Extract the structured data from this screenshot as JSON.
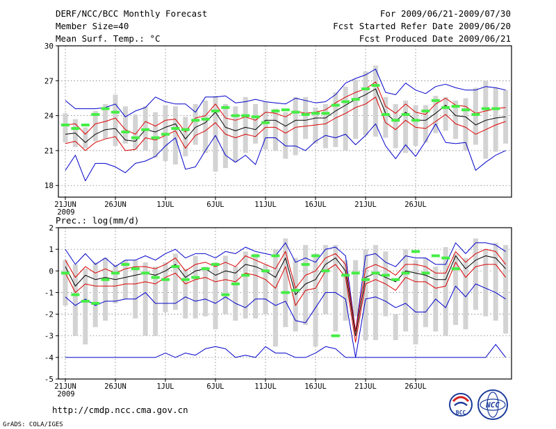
{
  "header": {
    "title": "DERF/NCC/BCC Monthly Forecast",
    "member": "Member Size=40",
    "variable": "Mean Surf. Temp.: °C",
    "range": "For 2009/06/21-2009/07/30",
    "started": "Fcst Started Refer Date 2009/06/20",
    "produced": "Fcst Produced Date 2009/06/21"
  },
  "footer": {
    "url": "http://cmdp.ncc.cma.gov.cn",
    "credit": "GrADS: COLA/IGES",
    "logo_bcc": "BCC",
    "logo_ncc": "NCC"
  },
  "colors": {
    "box": "#d3d3d3",
    "obs": "#44ee44",
    "mean": "#000000",
    "spread": "#dd0000",
    "extreme": "#0000cc",
    "grid": "#777777"
  },
  "chart_data": [
    {
      "type": "line",
      "title": "Mean Surf. Temp.: °C",
      "x_ticks": [
        "21JUN",
        "26JUN",
        "1JUL",
        "6JUL",
        "11JUL",
        "16JUL",
        "21JUL",
        "26JUL"
      ],
      "x_sublabel": "2009",
      "ylim": [
        17,
        30
      ],
      "y_ticks": [
        18,
        21,
        24,
        27,
        30
      ],
      "grid": true,
      "series": [
        {
          "name": "box_top",
          "values": [
            24.2,
            23.7,
            23.0,
            24.4,
            25.0,
            25.8,
            24.8,
            24.1,
            24.8,
            24.3,
            24.9,
            24.8,
            23.9,
            25.0,
            25.3,
            25.7,
            25.0,
            24.8,
            25.6,
            25.0,
            25.2,
            24.6,
            24.3,
            25.6,
            25.6,
            24.7,
            25.0,
            26.0,
            26.5,
            27.1,
            27.8,
            28.3,
            25.6,
            25.0,
            25.3,
            24.9,
            24.9,
            25.7,
            25.6,
            25.3,
            25.5,
            26.4,
            27.0,
            26.4,
            26.2
          ]
        },
        {
          "name": "box_bottom",
          "values": [
            21.7,
            21.3,
            21.2,
            21.8,
            22.0,
            21.4,
            21.6,
            21.1,
            21.0,
            20.4,
            20.1,
            19.8,
            20.5,
            21.5,
            20.8,
            19.2,
            19.5,
            20.0,
            20.8,
            21.6,
            21.1,
            21.0,
            20.3,
            20.6,
            22.0,
            21.6,
            21.2,
            21.3,
            21.0,
            22.0,
            22.3,
            22.2,
            22.1,
            21.2,
            20.8,
            21.4,
            21.7,
            22.5,
            22.7,
            22.0,
            21.0,
            21.5,
            20.3,
            20.9,
            21.6
          ]
        },
        {
          "name": "max",
          "values": [
            25.3,
            24.6,
            24.6,
            24.6,
            24.7,
            25.0,
            23.9,
            24.4,
            24.7,
            25.6,
            25.2,
            25.0,
            25.0,
            24.3,
            25.6,
            25.6,
            25.7,
            25.1,
            25.2,
            25.4,
            25.2,
            25.1,
            25.0,
            25.5,
            25.3,
            25.1,
            25.2,
            25.8,
            26.8,
            27.2,
            27.5,
            28.0,
            26.0,
            25.8,
            26.8,
            26.2,
            25.9,
            26.5,
            26.7,
            26.4,
            26.2,
            26.2,
            26.5,
            26.4,
            26.2
          ]
        },
        {
          "name": "upper",
          "values": [
            23.2,
            23.3,
            22.4,
            23.3,
            23.5,
            23.8,
            22.8,
            22.4,
            23.5,
            23.1,
            23.6,
            23.7,
            22.6,
            23.8,
            24.0,
            25.0,
            23.8,
            23.6,
            23.9,
            23.6,
            24.3,
            24.2,
            23.9,
            24.4,
            24.2,
            24.3,
            24.5,
            25.1,
            25.6,
            26.0,
            26.3,
            26.9,
            24.8,
            24.2,
            25.0,
            24.3,
            24.1,
            25.0,
            25.5,
            24.9,
            24.8,
            24.2,
            24.4,
            24.6,
            24.7
          ]
        },
        {
          "name": "mean",
          "values": [
            22.4,
            22.5,
            21.7,
            22.4,
            22.8,
            22.9,
            21.9,
            21.8,
            22.8,
            22.6,
            23.0,
            23.3,
            22.0,
            23.0,
            23.4,
            24.3,
            23.0,
            22.7,
            23.0,
            22.8,
            23.6,
            23.6,
            23.1,
            23.6,
            23.6,
            23.8,
            23.8,
            24.4,
            24.9,
            25.4,
            25.8,
            26.3,
            24.2,
            23.5,
            24.3,
            23.6,
            23.6,
            24.2,
            24.9,
            24.0,
            23.9,
            23.2,
            23.6,
            23.8,
            23.9
          ]
        },
        {
          "name": "lower",
          "values": [
            21.6,
            21.8,
            21.0,
            21.7,
            22.0,
            22.2,
            21.0,
            21.1,
            22.1,
            21.9,
            22.3,
            22.7,
            21.2,
            22.3,
            22.7,
            23.4,
            22.4,
            22.1,
            22.4,
            22.2,
            23.0,
            23.0,
            22.5,
            23.0,
            23.1,
            23.2,
            23.3,
            23.8,
            24.2,
            24.7,
            25.0,
            25.6,
            23.4,
            22.8,
            23.6,
            23.0,
            22.9,
            23.5,
            24.1,
            23.3,
            23.0,
            22.4,
            22.8,
            23.2,
            23.5
          ]
        },
        {
          "name": "min",
          "values": [
            19.3,
            20.6,
            18.4,
            19.9,
            19.9,
            19.6,
            19.1,
            19.9,
            20.1,
            20.5,
            21.4,
            22.1,
            19.4,
            19.6,
            21.0,
            22.3,
            20.6,
            20.0,
            20.6,
            19.8,
            22.1,
            22.1,
            21.4,
            21.4,
            21.0,
            21.8,
            22.3,
            22.1,
            22.4,
            21.5,
            22.3,
            23.3,
            21.4,
            20.3,
            21.5,
            20.5,
            21.8,
            23.3,
            21.7,
            21.6,
            21.7,
            19.3,
            20.0,
            20.6,
            21.0
          ]
        },
        {
          "name": "observation",
          "values": [
            23.2,
            22.9,
            23.2,
            24.1,
            24.6,
            24.3,
            22.6,
            22.1,
            22.8,
            22.1,
            22.4,
            22.9,
            22.8,
            23.6,
            23.7,
            24.4,
            24.7,
            24.0,
            24.0,
            23.9,
            23.4,
            24.4,
            24.5,
            24.3,
            24.1,
            24.2,
            24.2,
            24.9,
            25.2,
            25.4,
            26.3,
            26.6,
            24.1,
            23.6,
            24.1,
            23.6,
            24.4,
            25.3,
            24.7,
            24.8,
            24.5,
            24.1,
            24.6,
            24.6,
            null
          ]
        }
      ]
    },
    {
      "type": "line",
      "title": "Prec.: log(mm/d)",
      "x_ticks": [
        "21JUN",
        "26JUN",
        "1JUL",
        "6JUL",
        "11JUL",
        "16JUL",
        "21JUL",
        "26JUL"
      ],
      "x_sublabel": "2009",
      "ylim": [
        -5,
        2
      ],
      "y_ticks": [
        -5,
        -4,
        -3,
        -2,
        -1,
        0,
        1,
        2
      ],
      "grid": true,
      "series": [
        {
          "name": "box_top",
          "values": [
            0.5,
            0.3,
            0.1,
            0.4,
            0.6,
            0.3,
            0.5,
            0.5,
            0.4,
            0.2,
            0.4,
            0.8,
            0.1,
            0.7,
            0.2,
            0.4,
            0.7,
            0.2,
            0.9,
            0.8,
            0.3,
            1.0,
            1.5,
            0.6,
            1.2,
            0.8,
            1.2,
            1.2,
            0.5,
            0.5,
            1.0,
            1.2,
            0.9,
            -2.0,
            1.0,
            0.5,
            0.6,
            0.2,
            1.1,
            0.8,
            0.6,
            1.5,
            1.0,
            1.3,
            1.2
          ]
        },
        {
          "name": "box_bottom",
          "values": [
            -1.6,
            -3.0,
            -3.4,
            -2.6,
            -2.3,
            -1.5,
            -1.3,
            -2.2,
            -3.0,
            -3.0,
            -1.9,
            -1.8,
            -2.2,
            -2.2,
            -2.1,
            -2.7,
            -2.0,
            -2.3,
            -2.2,
            -2.2,
            -2.0,
            -3.5,
            -2.6,
            -2.8,
            -2.5,
            -3.5,
            -2.0,
            -2.8,
            -2.3,
            -2.1,
            -3.2,
            -3.2,
            -2.1,
            -3.2,
            -2.8,
            -3.4,
            -2.6,
            -2.8,
            -3.0,
            -2.5,
            -2.7,
            -1.8,
            -2.1,
            -2.3,
            -2.9
          ]
        },
        {
          "name": "max",
          "values": [
            1.0,
            0.3,
            0.8,
            0.3,
            0.6,
            0.2,
            0.5,
            0.5,
            0.7,
            0.5,
            0.8,
            1.0,
            0.6,
            0.8,
            0.8,
            0.6,
            0.9,
            0.8,
            1.1,
            0.9,
            0.8,
            0.7,
            1.3,
            0.4,
            0.6,
            0.4,
            1.0,
            1.1,
            0.7,
            -2.8,
            0.7,
            0.8,
            0.4,
            0.2,
            0.7,
            0.6,
            0.6,
            0.3,
            0.3,
            1.3,
            0.8,
            1.3,
            1.3,
            1.2,
            0.9
          ]
        },
        {
          "name": "upper",
          "values": [
            0.5,
            -0.3,
            0.2,
            -0.1,
            0.1,
            -0.1,
            0.1,
            0.2,
            0.2,
            0.1,
            0.3,
            0.6,
            0.0,
            0.3,
            0.4,
            0.2,
            0.4,
            0.2,
            0.7,
            0.5,
            0.3,
            0.1,
            0.9,
            -0.8,
            -0.2,
            0.0,
            0.6,
            0.8,
            0.3,
            -2.8,
            0.1,
            0.3,
            0.1,
            -0.2,
            0.3,
            0.3,
            0.2,
            -0.1,
            -0.1,
            0.9,
            0.4,
            0.8,
            1.0,
            0.9,
            0.3
          ]
        },
        {
          "name": "mean",
          "values": [
            0.2,
            -0.7,
            -0.2,
            -0.4,
            -0.3,
            -0.4,
            -0.3,
            -0.2,
            -0.1,
            -0.2,
            0.0,
            0.3,
            -0.3,
            0.0,
            0.1,
            -0.2,
            0.0,
            -0.1,
            0.3,
            0.2,
            0.0,
            -0.3,
            0.6,
            -1.1,
            -0.6,
            -0.4,
            0.3,
            0.6,
            0.0,
            -3.0,
            -0.3,
            -0.1,
            -0.3,
            -0.5,
            0.0,
            -0.1,
            -0.2,
            -0.4,
            -0.4,
            0.7,
            0.1,
            0.5,
            0.7,
            0.6,
            0.1
          ]
        },
        {
          "name": "lower",
          "values": [
            -0.1,
            -1.0,
            -0.6,
            -0.7,
            -0.7,
            -0.7,
            -0.6,
            -0.6,
            -0.5,
            -0.6,
            -0.3,
            -0.1,
            -0.6,
            -0.4,
            -0.3,
            -0.5,
            -0.4,
            -0.5,
            -0.1,
            -0.2,
            -0.4,
            -0.8,
            0.2,
            -1.6,
            -0.9,
            -0.8,
            0.0,
            0.3,
            -0.3,
            -3.3,
            -0.6,
            -0.4,
            -0.6,
            -0.9,
            -0.3,
            -0.5,
            -0.5,
            -0.8,
            -0.7,
            0.4,
            -0.3,
            0.2,
            0.3,
            0.3,
            -0.3
          ]
        },
        {
          "name": "min",
          "values": [
            -1.2,
            -1.6,
            -1.3,
            -1.6,
            -1.4,
            -1.4,
            -1.3,
            -1.3,
            -1.0,
            -1.5,
            -1.5,
            -1.5,
            -1.2,
            -1.4,
            -1.3,
            -1.5,
            -1.2,
            -1.5,
            -1.7,
            -1.3,
            -1.3,
            -1.6,
            -1.4,
            -2.3,
            -2.4,
            -1.7,
            -1.0,
            -1.0,
            -1.3,
            -4.0,
            -1.3,
            -1.2,
            -1.4,
            -1.7,
            -1.5,
            -1.9,
            -1.9,
            -1.3,
            -1.7,
            -0.7,
            -1.2,
            -0.6,
            -0.8,
            -1.0,
            -1.3
          ]
        },
        {
          "name": "extreme_min",
          "values": [
            -4.0,
            -4.0,
            -4.0,
            -4.0,
            -4.0,
            -4.0,
            -4.0,
            -4.0,
            -4.0,
            -4.0,
            -3.8,
            -4.0,
            -3.8,
            -3.9,
            -3.6,
            -3.5,
            -3.6,
            -4.0,
            -3.9,
            -4.0,
            -3.5,
            -3.8,
            -3.8,
            -4.0,
            -4.0,
            -3.8,
            -3.5,
            -3.6,
            -4.0,
            -4.0,
            -4.0,
            -4.0,
            -4.0,
            -4.0,
            -4.0,
            -4.0,
            -4.0,
            -4.0,
            -4.0,
            -4.0,
            -4.0,
            -4.0,
            -4.0,
            -3.4,
            -4.0
          ]
        },
        {
          "name": "observation",
          "values": [
            -0.1,
            -1.1,
            -1.4,
            -1.5,
            -0.4,
            -0.1,
            0.3,
            0.1,
            -0.1,
            -0.3,
            -0.4,
            0.2,
            -0.4,
            -0.3,
            0.1,
            0.3,
            -1.1,
            -0.6,
            -0.2,
            0.7,
            0.0,
            0.7,
            -1.0,
            -0.9,
            0.3,
            0.7,
            0.0,
            -3.0,
            -0.2,
            -0.1,
            -0.4,
            -0.1,
            -0.2,
            -0.4,
            -0.1,
            0.9,
            -0.1,
            0.7,
            0.6,
            0.1,
            null,
            null,
            null,
            null,
            null
          ]
        }
      ]
    }
  ]
}
